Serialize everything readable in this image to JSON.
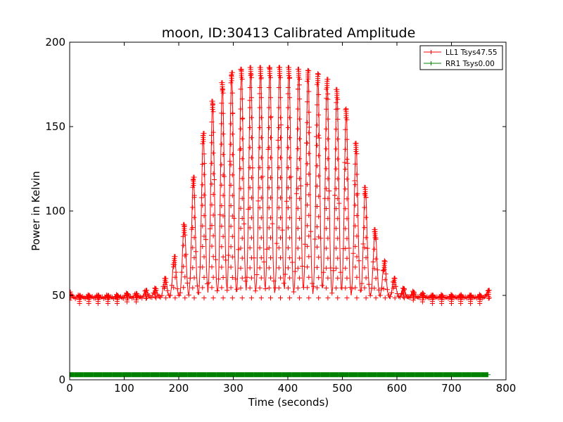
{
  "chart_data": {
    "type": "line",
    "title": "moon, ID:30413 Calibrated Amplitude",
    "xlabel": "Time (seconds)",
    "ylabel": "Power in Kelvin",
    "xlim": [
      0,
      800
    ],
    "ylim": [
      0,
      200
    ],
    "xticks": [
      0,
      100,
      200,
      300,
      400,
      500,
      600,
      700,
      800
    ],
    "yticks": [
      0,
      50,
      100,
      150,
      200
    ],
    "grid": false,
    "legend_position": "top-right",
    "series": [
      {
        "name": "LL1 Tsys47.55",
        "color": "#ff0000",
        "marker": "+",
        "baseline": 48.5,
        "x_range": [
          0,
          768
        ],
        "peaks": [
          {
            "x": 0,
            "y": 52
          },
          {
            "x": 18,
            "y": 50
          },
          {
            "x": 35,
            "y": 50
          },
          {
            "x": 52,
            "y": 50
          },
          {
            "x": 70,
            "y": 50
          },
          {
            "x": 87,
            "y": 50
          },
          {
            "x": 105,
            "y": 51
          },
          {
            "x": 122,
            "y": 51
          },
          {
            "x": 140,
            "y": 53
          },
          {
            "x": 157,
            "y": 54
          },
          {
            "x": 175,
            "y": 60
          },
          {
            "x": 192,
            "y": 73
          },
          {
            "x": 210,
            "y": 92
          },
          {
            "x": 227,
            "y": 120
          },
          {
            "x": 245,
            "y": 146
          },
          {
            "x": 262,
            "y": 165
          },
          {
            "x": 280,
            "y": 176
          },
          {
            "x": 297,
            "y": 182
          },
          {
            "x": 315,
            "y": 184
          },
          {
            "x": 332,
            "y": 185
          },
          {
            "x": 350,
            "y": 185
          },
          {
            "x": 367,
            "y": 185
          },
          {
            "x": 385,
            "y": 185
          },
          {
            "x": 402,
            "y": 185
          },
          {
            "x": 420,
            "y": 184
          },
          {
            "x": 437,
            "y": 183
          },
          {
            "x": 455,
            "y": 181
          },
          {
            "x": 472,
            "y": 178
          },
          {
            "x": 490,
            "y": 172
          },
          {
            "x": 507,
            "y": 160
          },
          {
            "x": 525,
            "y": 140
          },
          {
            "x": 542,
            "y": 114
          },
          {
            "x": 560,
            "y": 89
          },
          {
            "x": 577,
            "y": 70
          },
          {
            "x": 595,
            "y": 60
          },
          {
            "x": 612,
            "y": 54
          },
          {
            "x": 630,
            "y": 52
          },
          {
            "x": 647,
            "y": 51
          },
          {
            "x": 665,
            "y": 50
          },
          {
            "x": 682,
            "y": 50
          },
          {
            "x": 700,
            "y": 50
          },
          {
            "x": 717,
            "y": 50
          },
          {
            "x": 735,
            "y": 50
          },
          {
            "x": 752,
            "y": 50
          },
          {
            "x": 768,
            "y": 53
          }
        ]
      },
      {
        "name": "RR1 Tsys0.00",
        "color": "#008000",
        "marker": "+",
        "values_constant": 3,
        "x_range": [
          0,
          768
        ]
      }
    ]
  }
}
